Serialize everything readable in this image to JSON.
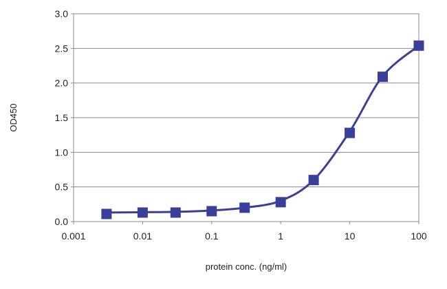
{
  "chart_data": {
    "type": "scatter",
    "xlabel": "protein conc. (ng/ml)",
    "ylabel": "OD450",
    "x_scale": "log",
    "xlim": [
      0.001,
      100
    ],
    "ylim": [
      0,
      3.0
    ],
    "x_ticks": [
      "0.001",
      "0.01",
      "0.1",
      "1",
      "10",
      "100"
    ],
    "y_ticks": [
      "0.0",
      "0.5",
      "1.0",
      "1.5",
      "2.0",
      "2.5",
      "3.0"
    ],
    "grid": "horizontal",
    "legend": "none",
    "series": [
      {
        "color": "#3a3f9a",
        "marker": "square",
        "points": [
          {
            "x": 0.003,
            "y": 0.11
          },
          {
            "x": 0.01,
            "y": 0.13
          },
          {
            "x": 0.03,
            "y": 0.13
          },
          {
            "x": 0.1,
            "y": 0.15
          },
          {
            "x": 0.3,
            "y": 0.2
          },
          {
            "x": 1,
            "y": 0.28
          },
          {
            "x": 3,
            "y": 0.6
          },
          {
            "x": 10,
            "y": 1.28
          },
          {
            "x": 30,
            "y": 2.09
          },
          {
            "x": 100,
            "y": 2.54
          }
        ]
      }
    ],
    "fit_curve": {
      "color": "#3a3f9a",
      "points": [
        {
          "x": 0.003,
          "y": 0.13
        },
        {
          "x": 0.01,
          "y": 0.135
        },
        {
          "x": 0.03,
          "y": 0.14
        },
        {
          "x": 0.1,
          "y": 0.16
        },
        {
          "x": 0.3,
          "y": 0.2
        },
        {
          "x": 1,
          "y": 0.3
        },
        {
          "x": 3,
          "y": 0.6
        },
        {
          "x": 10,
          "y": 1.3
        },
        {
          "x": 30,
          "y": 2.1
        },
        {
          "x": 100,
          "y": 2.54
        }
      ]
    }
  }
}
